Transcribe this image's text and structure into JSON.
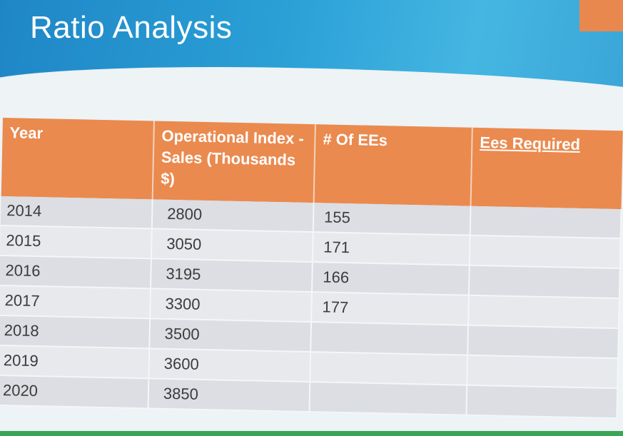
{
  "slide": {
    "title": "Ratio Analysis"
  },
  "table": {
    "headers": [
      "Year",
      "Operational Index - Sales (Thousands $)",
      "# Of EEs",
      "Ees Required"
    ],
    "rows": [
      [
        "2014",
        "2800",
        "155",
        ""
      ],
      [
        "2015",
        "3050",
        "171",
        ""
      ],
      [
        "2016",
        "3195",
        "166",
        ""
      ],
      [
        "2017",
        "3300",
        "177",
        ""
      ],
      [
        "2018",
        "3500",
        "",
        ""
      ],
      [
        "2019",
        "3600",
        "",
        ""
      ],
      [
        "2020",
        "3850",
        "",
        ""
      ]
    ]
  },
  "colors": {
    "header_blue": "#2aa0d6",
    "table_header_orange": "#ea8a4f",
    "row_gray": "#dcdee3"
  }
}
